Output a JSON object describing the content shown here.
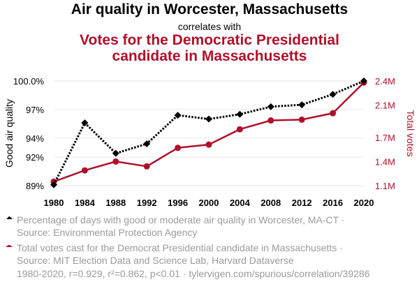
{
  "header": {
    "title": "Air quality in Worcester, Massachusetts",
    "subtitle": "correlates with",
    "title2_line1": "Votes for the Democratic Presidential",
    "title2_line2": "candidate in Massachusetts"
  },
  "colors": {
    "series1": "#000000",
    "series2": "#b0102a",
    "grid": "#e6e6e6",
    "muted": "#9a9a9a"
  },
  "chart_data": {
    "type": "line",
    "x": [
      1980,
      1984,
      1988,
      1992,
      1996,
      2000,
      2004,
      2008,
      2012,
      2016,
      2020
    ],
    "xlabel": "",
    "ylabel_left": "Good air quality",
    "ylabel_right": "Total votes",
    "left_ticks": [
      {
        "v": 89,
        "label": "89%"
      },
      {
        "v": 92,
        "label": "92%"
      },
      {
        "v": 94,
        "label": "94%"
      },
      {
        "v": 97,
        "label": "97%"
      },
      {
        "v": 100,
        "label": "100.0%"
      }
    ],
    "right_ticks": [
      {
        "v": 1.1,
        "label": "1.1M"
      },
      {
        "v": 1.4,
        "label": "1.4M"
      },
      {
        "v": 1.7,
        "label": "1.7M"
      },
      {
        "v": 2.1,
        "label": "2.1M"
      },
      {
        "v": 2.4,
        "label": "2.4M"
      }
    ],
    "left_range": [
      89,
      100
    ],
    "right_range": [
      1.1,
      2.4
    ],
    "series": [
      {
        "name": "Percentage of days with good or moderate air quality in Worcester, MA-CT",
        "axis": "left",
        "style": "dotted",
        "marker": "diamond",
        "values": [
          89.1,
          95.6,
          92.4,
          93.4,
          96.4,
          96.0,
          96.5,
          97.3,
          97.5,
          98.6,
          100.0
        ]
      },
      {
        "name": "Total votes cast for the Democrat Presidential candidate in Massachusetts",
        "axis": "right",
        "style": "solid",
        "marker": "circle",
        "values": [
          1.15,
          1.29,
          1.4,
          1.34,
          1.57,
          1.61,
          1.8,
          1.91,
          1.92,
          2.0,
          2.38
        ]
      }
    ]
  },
  "legend": {
    "item1_line1": "Percentage of days with good or moderate air quality in Worcester, MA-CT ·",
    "item1_line2": "Source: Environmental Protection Agency",
    "item2_line1": "Total votes cast for the Democrat Presidential candidate in Massachusetts ·",
    "item2_line2": "Source: MIT Election Data and Science Lab, Harvard Dataverse"
  },
  "footer": "1980-2020, r=0.929, r²=0.862, p<0.01 · tylervigen.com/spurious/correlation/39286"
}
